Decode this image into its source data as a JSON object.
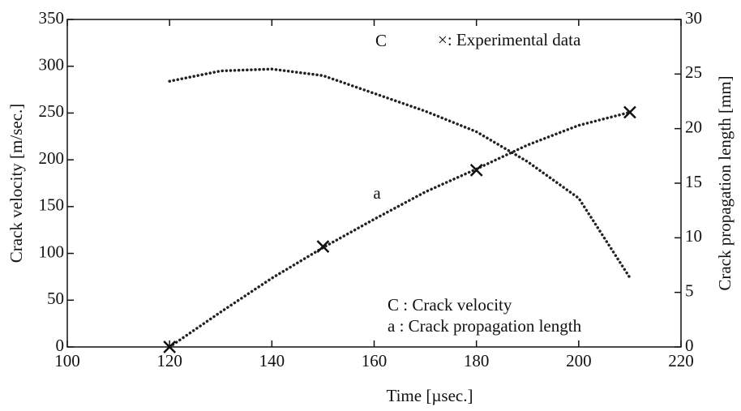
{
  "chart_data": {
    "type": "line",
    "xlabel": "Time    [µsec.]",
    "ylabel": "Crack velocity [m/sec.]",
    "y2label": "Crack propagation length [mm]",
    "x": [
      120,
      130,
      140,
      150,
      160,
      170,
      180,
      190,
      200,
      210
    ],
    "series": [
      {
        "name": "C",
        "color": "#222222",
        "values": [
          284,
          295,
          297,
          290,
          271,
          252,
          230,
          198,
          159,
          74
        ]
      },
      {
        "name": "a",
        "color": "#222222",
        "axis": "y2",
        "values": [
          0,
          3.2,
          6.3,
          9.1,
          11.7,
          14.2,
          16.3,
          18.5,
          20.3,
          21.5
        ]
      },
      {
        "type": "scatter",
        "color": "#111111",
        "axis": "y2",
        "x": [
          120,
          150,
          180,
          210
        ],
        "values": [
          0,
          9.2,
          16.2,
          21.5
        ]
      }
    ],
    "annotations": [
      "×: Experimental data",
      "C : Crack velocity",
      "a : Crack propagation length"
    ],
    "xlim": [
      100,
      220
    ],
    "xticks": [
      100,
      120,
      140,
      160,
      180,
      200,
      220
    ],
    "ylim": [
      0,
      350
    ],
    "yticks": [
      0,
      50,
      100,
      150,
      200,
      250,
      300,
      350
    ],
    "y2lim": [
      0,
      30
    ],
    "y2ticks": [
      0,
      5,
      10,
      15,
      20,
      25,
      30
    ],
    "grid": false
  }
}
